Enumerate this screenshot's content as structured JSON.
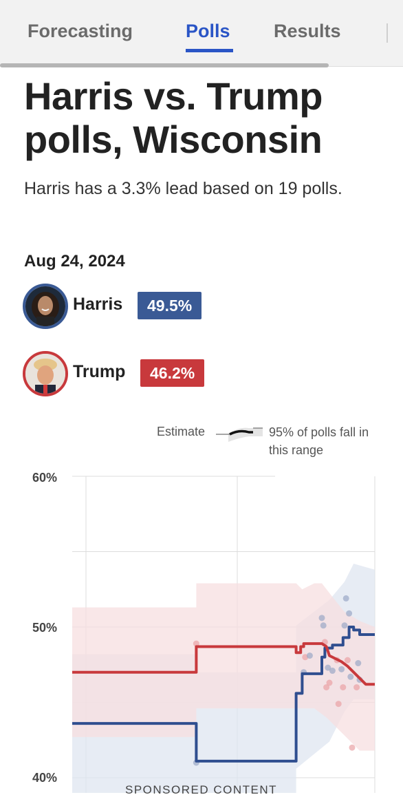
{
  "nav": {
    "tabs": [
      {
        "label": "Forecasting",
        "active": false
      },
      {
        "label": "Polls",
        "active": true
      },
      {
        "label": "Results",
        "active": false
      }
    ]
  },
  "header": {
    "title": "Harris vs. Trump polls, Wisconsin",
    "subtitle": "Harris has a 3.3% lead based on 19 polls.",
    "date": "Aug 24, 2024"
  },
  "candidates": [
    {
      "name": "Harris",
      "value": "49.5%",
      "color": "#3a5a95"
    },
    {
      "name": "Trump",
      "value": "46.2%",
      "color": "#c8393c"
    }
  ],
  "legend": {
    "estimate_label": "Estimate",
    "range_label": "95% of polls fall in this range"
  },
  "chart_data": {
    "type": "line",
    "y_tick_labels": [
      "60%",
      "50%",
      "40%"
    ],
    "ylim": [
      40,
      60
    ],
    "grid": true,
    "series": [
      {
        "name": "Harris",
        "color": "#2f4e8f",
        "band_color": "#dfe6f0",
        "points": [
          [
            0,
            43.6
          ],
          [
            0.41,
            43.6
          ],
          [
            0.41,
            41.1
          ],
          [
            0.74,
            41.1
          ],
          [
            0.74,
            45.6
          ],
          [
            0.76,
            45.6
          ],
          [
            0.76,
            46.9
          ],
          [
            0.825,
            46.9
          ],
          [
            0.825,
            48.0
          ],
          [
            0.835,
            48.0
          ],
          [
            0.835,
            48.6
          ],
          [
            0.86,
            48.6
          ],
          [
            0.86,
            48.8
          ],
          [
            0.895,
            48.8
          ],
          [
            0.895,
            49.3
          ],
          [
            0.915,
            49.3
          ],
          [
            0.915,
            50.0
          ],
          [
            0.93,
            50.0
          ],
          [
            0.93,
            49.8
          ],
          [
            0.95,
            49.8
          ],
          [
            0.95,
            49.5
          ],
          [
            1,
            49.5
          ]
        ],
        "band_upper": [
          [
            0,
            48.2
          ],
          [
            0.41,
            48.2
          ],
          [
            0.41,
            47.0
          ],
          [
            0.74,
            47.0
          ],
          [
            0.74,
            50.1
          ],
          [
            0.85,
            51.8
          ],
          [
            0.9,
            53.0
          ],
          [
            0.93,
            54.2
          ],
          [
            1,
            53.8
          ]
        ],
        "band_lower": [
          [
            0,
            38.9
          ],
          [
            0.41,
            38.9
          ],
          [
            0.41,
            37.2
          ],
          [
            0.74,
            37.2
          ],
          [
            0.74,
            40.6
          ],
          [
            0.85,
            42.4
          ],
          [
            0.9,
            44.4
          ],
          [
            0.93,
            45.2
          ],
          [
            1,
            45.2
          ]
        ]
      },
      {
        "name": "Trump",
        "color": "#c8393c",
        "band_color": "#f7dfe0",
        "points": [
          [
            0,
            47.0
          ],
          [
            0.41,
            47.0
          ],
          [
            0.41,
            48.7
          ],
          [
            0.74,
            48.7
          ],
          [
            0.74,
            48.3
          ],
          [
            0.755,
            48.3
          ],
          [
            0.755,
            48.7
          ],
          [
            0.765,
            48.7
          ],
          [
            0.765,
            48.9
          ],
          [
            0.825,
            48.9
          ],
          [
            0.84,
            48.7
          ],
          [
            0.85,
            48.1
          ],
          [
            0.87,
            47.9
          ],
          [
            0.89,
            47.7
          ],
          [
            0.91,
            47.4
          ],
          [
            0.93,
            47.0
          ],
          [
            0.95,
            46.6
          ],
          [
            0.97,
            46.2
          ],
          [
            1,
            46.2
          ]
        ],
        "band_upper": [
          [
            0,
            51.3
          ],
          [
            0.41,
            51.3
          ],
          [
            0.41,
            52.9
          ],
          [
            0.74,
            52.9
          ],
          [
            0.76,
            52.5
          ],
          [
            0.8,
            52.9
          ],
          [
            0.825,
            52.9
          ],
          [
            0.86,
            52.0
          ],
          [
            0.9,
            51.0
          ],
          [
            0.95,
            50.4
          ],
          [
            1,
            50.0
          ]
        ],
        "band_lower": [
          [
            0,
            42.7
          ],
          [
            0.41,
            42.7
          ],
          [
            0.41,
            44.6
          ],
          [
            0.74,
            44.6
          ],
          [
            0.8,
            44.6
          ],
          [
            0.84,
            44.0
          ],
          [
            0.88,
            43.2
          ],
          [
            0.92,
            42.4
          ],
          [
            0.95,
            41.8
          ],
          [
            1,
            41.8
          ]
        ]
      }
    ],
    "polls": [
      {
        "x": 0.41,
        "y": 48.9,
        "party": "Trump"
      },
      {
        "x": 0.41,
        "y": 41.0,
        "party": "Harris"
      },
      {
        "x": 0.765,
        "y": 47.0,
        "party": "Harris"
      },
      {
        "x": 0.77,
        "y": 48.0,
        "party": "Trump"
      },
      {
        "x": 0.785,
        "y": 48.1,
        "party": "Harris"
      },
      {
        "x": 0.825,
        "y": 50.6,
        "party": "Harris"
      },
      {
        "x": 0.83,
        "y": 50.1,
        "party": "Harris"
      },
      {
        "x": 0.835,
        "y": 49.0,
        "party": "Trump"
      },
      {
        "x": 0.84,
        "y": 46.0,
        "party": "Trump"
      },
      {
        "x": 0.845,
        "y": 47.3,
        "party": "Harris"
      },
      {
        "x": 0.85,
        "y": 46.3,
        "party": "Trump"
      },
      {
        "x": 0.86,
        "y": 47.1,
        "party": "Harris"
      },
      {
        "x": 0.875,
        "y": 47.8,
        "party": "Trump"
      },
      {
        "x": 0.88,
        "y": 44.9,
        "party": "Trump"
      },
      {
        "x": 0.89,
        "y": 47.2,
        "party": "Harris"
      },
      {
        "x": 0.895,
        "y": 46.0,
        "party": "Trump"
      },
      {
        "x": 0.9,
        "y": 50.1,
        "party": "Harris"
      },
      {
        "x": 0.905,
        "y": 51.9,
        "party": "Harris"
      },
      {
        "x": 0.91,
        "y": 47.8,
        "party": "Trump"
      },
      {
        "x": 0.915,
        "y": 50.9,
        "party": "Harris"
      },
      {
        "x": 0.92,
        "y": 46.7,
        "party": "Harris"
      },
      {
        "x": 0.925,
        "y": 42.0,
        "party": "Trump"
      },
      {
        "x": 0.94,
        "y": 46.0,
        "party": "Trump"
      },
      {
        "x": 0.945,
        "y": 47.6,
        "party": "Harris"
      },
      {
        "x": 0.95,
        "y": 46.5,
        "party": "Harris"
      }
    ]
  },
  "footer": {
    "sponsored": "SPONSORED CONTENT"
  }
}
